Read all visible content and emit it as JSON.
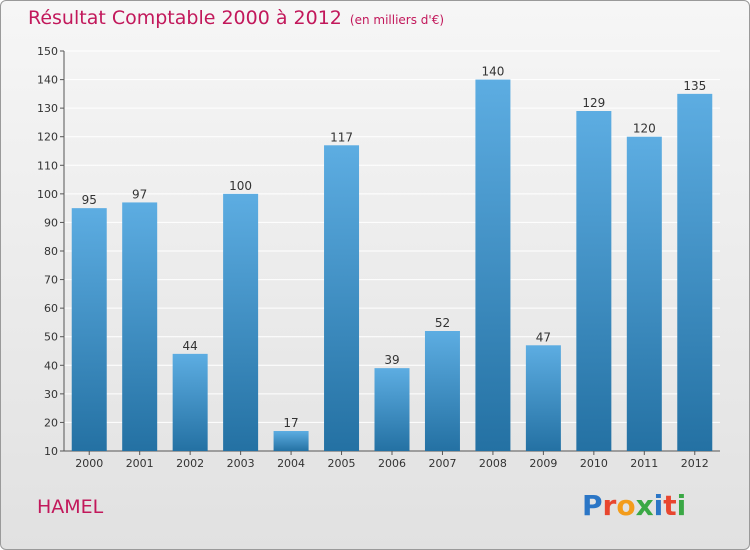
{
  "chart_data": {
    "type": "bar",
    "title": "Résultat Comptable 2000 à 2012",
    "subtitle": "(en milliers d'€)",
    "categories": [
      "2000",
      "2001",
      "2002",
      "2003",
      "2004",
      "2005",
      "2006",
      "2007",
      "2008",
      "2009",
      "2010",
      "2011",
      "2012"
    ],
    "values": [
      95,
      97,
      44,
      100,
      17,
      117,
      39,
      52,
      140,
      47,
      129,
      120,
      135
    ],
    "ylim": [
      10,
      150
    ],
    "yticks": [
      10,
      20,
      30,
      40,
      50,
      60,
      70,
      80,
      90,
      100,
      110,
      120,
      130,
      140,
      150
    ],
    "xlabel": "",
    "ylabel": "",
    "grid": true
  },
  "commune": "HAMEL",
  "logo": {
    "text": "Proxiti"
  },
  "colors": {
    "bar_light": "#5dade2",
    "bar_dark": "#2471a3",
    "title": "#c2185b",
    "grid": "#ffffff"
  }
}
